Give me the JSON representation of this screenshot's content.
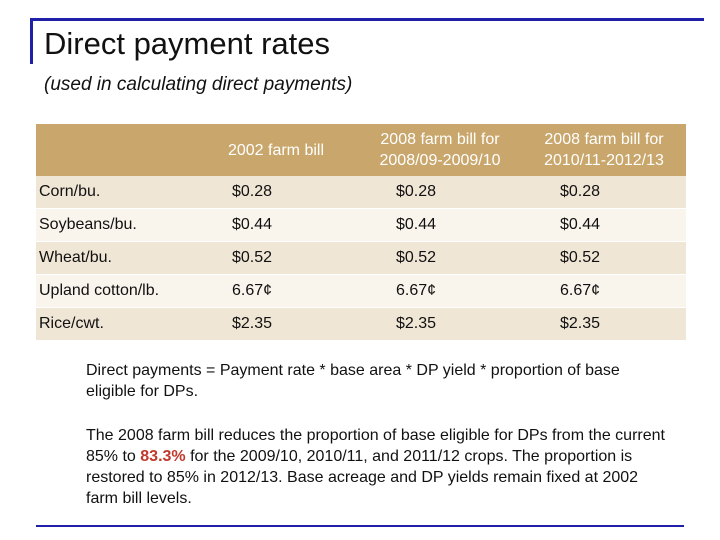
{
  "slide": {
    "title": "Direct payment rates",
    "subtitle": "(used in calculating direct payments)"
  },
  "table": {
    "headers": [
      "",
      "2002 farm bill",
      "2008 farm bill for 2008/09-2009/10",
      "2008 farm bill for 2010/11-2012/13"
    ],
    "rows": [
      {
        "label": "Corn/bu.",
        "values": [
          "$0.28",
          "$0.28",
          "$0.28"
        ]
      },
      {
        "label": "Soybeans/bu.",
        "values": [
          "$0.44",
          "$0.44",
          "$0.44"
        ]
      },
      {
        "label": "Wheat/bu.",
        "values": [
          "$0.52",
          "$0.52",
          "$0.52"
        ]
      },
      {
        "label": "Upland cotton/lb.",
        "values": [
          "6.67¢",
          "6.67¢",
          "6.67¢"
        ]
      },
      {
        "label": "Rice/cwt.",
        "values": [
          "$2.35",
          "$2.35",
          "$2.35"
        ]
      }
    ]
  },
  "notes": {
    "paragraph1": "Direct payments = Payment rate * base area * DP yield * proportion of base eligible for DPs.",
    "paragraph2_before": "The 2008 farm bill reduces the proportion of base eligible for DPs from the current 85% to ",
    "paragraph2_highlight": "83.3%",
    "paragraph2_after": " for the 2009/10, 2010/11, and 2011/12 crops. The proportion is restored to 85% in 2012/13.  Base acreage and DP yields remain fixed at 2002 farm bill levels."
  },
  "colors": {
    "accent": "#1f1fa8",
    "header_bg": "#c9a66b",
    "row_odd": "#f0e6d6",
    "row_even": "#f9f4ec",
    "highlight": "#c0392b"
  }
}
